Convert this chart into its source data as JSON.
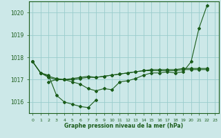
{
  "xlabel": "Graphe pression niveau de la mer (hPa)",
  "background_color": "#cce8e8",
  "grid_color": "#99cccc",
  "line_color": "#1a5c1a",
  "ylim": [
    1015.5,
    1020.5
  ],
  "xlim": [
    -0.5,
    23.5
  ],
  "yticks": [
    1016,
    1017,
    1018,
    1019,
    1020
  ],
  "xticks": [
    0,
    1,
    2,
    3,
    4,
    5,
    6,
    7,
    8,
    9,
    10,
    11,
    12,
    13,
    14,
    15,
    16,
    17,
    18,
    19,
    20,
    21,
    22,
    23
  ],
  "lines2": [
    {
      "x": [
        0,
        1,
        2,
        3,
        4,
        5,
        6,
        7,
        8
      ],
      "y": [
        1017.8,
        1017.3,
        1017.2,
        1016.3,
        1016.0,
        1015.9,
        1015.8,
        1015.75,
        1016.1
      ]
    },
    {
      "x": [
        2,
        3,
        4,
        5,
        6,
        7,
        8,
        9,
        10,
        11,
        12,
        13,
        14,
        15,
        16,
        17,
        18,
        19,
        20,
        21,
        22
      ],
      "y": [
        1016.9,
        1017.0,
        1017.0,
        1016.9,
        1016.8,
        1016.6,
        1016.5,
        1016.6,
        1016.55,
        1016.9,
        1016.95,
        1017.05,
        1017.2,
        1017.3,
        1017.3,
        1017.35,
        1017.3,
        1017.35,
        1017.8,
        1019.3,
        1020.3
      ]
    },
    {
      "x": [
        0,
        1,
        2,
        3,
        4,
        5,
        6,
        7,
        8,
        9,
        10,
        11,
        12,
        13,
        14,
        15,
        16,
        17,
        18,
        19,
        20,
        21,
        22
      ],
      "y": [
        1017.8,
        1017.3,
        1017.1,
        1017.0,
        1017.0,
        1017.05,
        1017.1,
        1017.15,
        1017.1,
        1017.15,
        1017.2,
        1017.25,
        1017.3,
        1017.35,
        1017.4,
        1017.45,
        1017.45,
        1017.45,
        1017.45,
        1017.5,
        1017.5,
        1017.5,
        1017.5
      ]
    },
    {
      "x": [
        0,
        1,
        2,
        3,
        4,
        5,
        6,
        7,
        8,
        9,
        10,
        11,
        12,
        13,
        14,
        15,
        16,
        17,
        18,
        19,
        20,
        21,
        22
      ],
      "y": [
        1017.8,
        1017.3,
        1017.15,
        1017.05,
        1017.0,
        1017.0,
        1017.05,
        1017.1,
        1017.1,
        1017.15,
        1017.2,
        1017.25,
        1017.3,
        1017.35,
        1017.4,
        1017.4,
        1017.4,
        1017.4,
        1017.4,
        1017.45,
        1017.45,
        1017.45,
        1017.45
      ]
    }
  ]
}
